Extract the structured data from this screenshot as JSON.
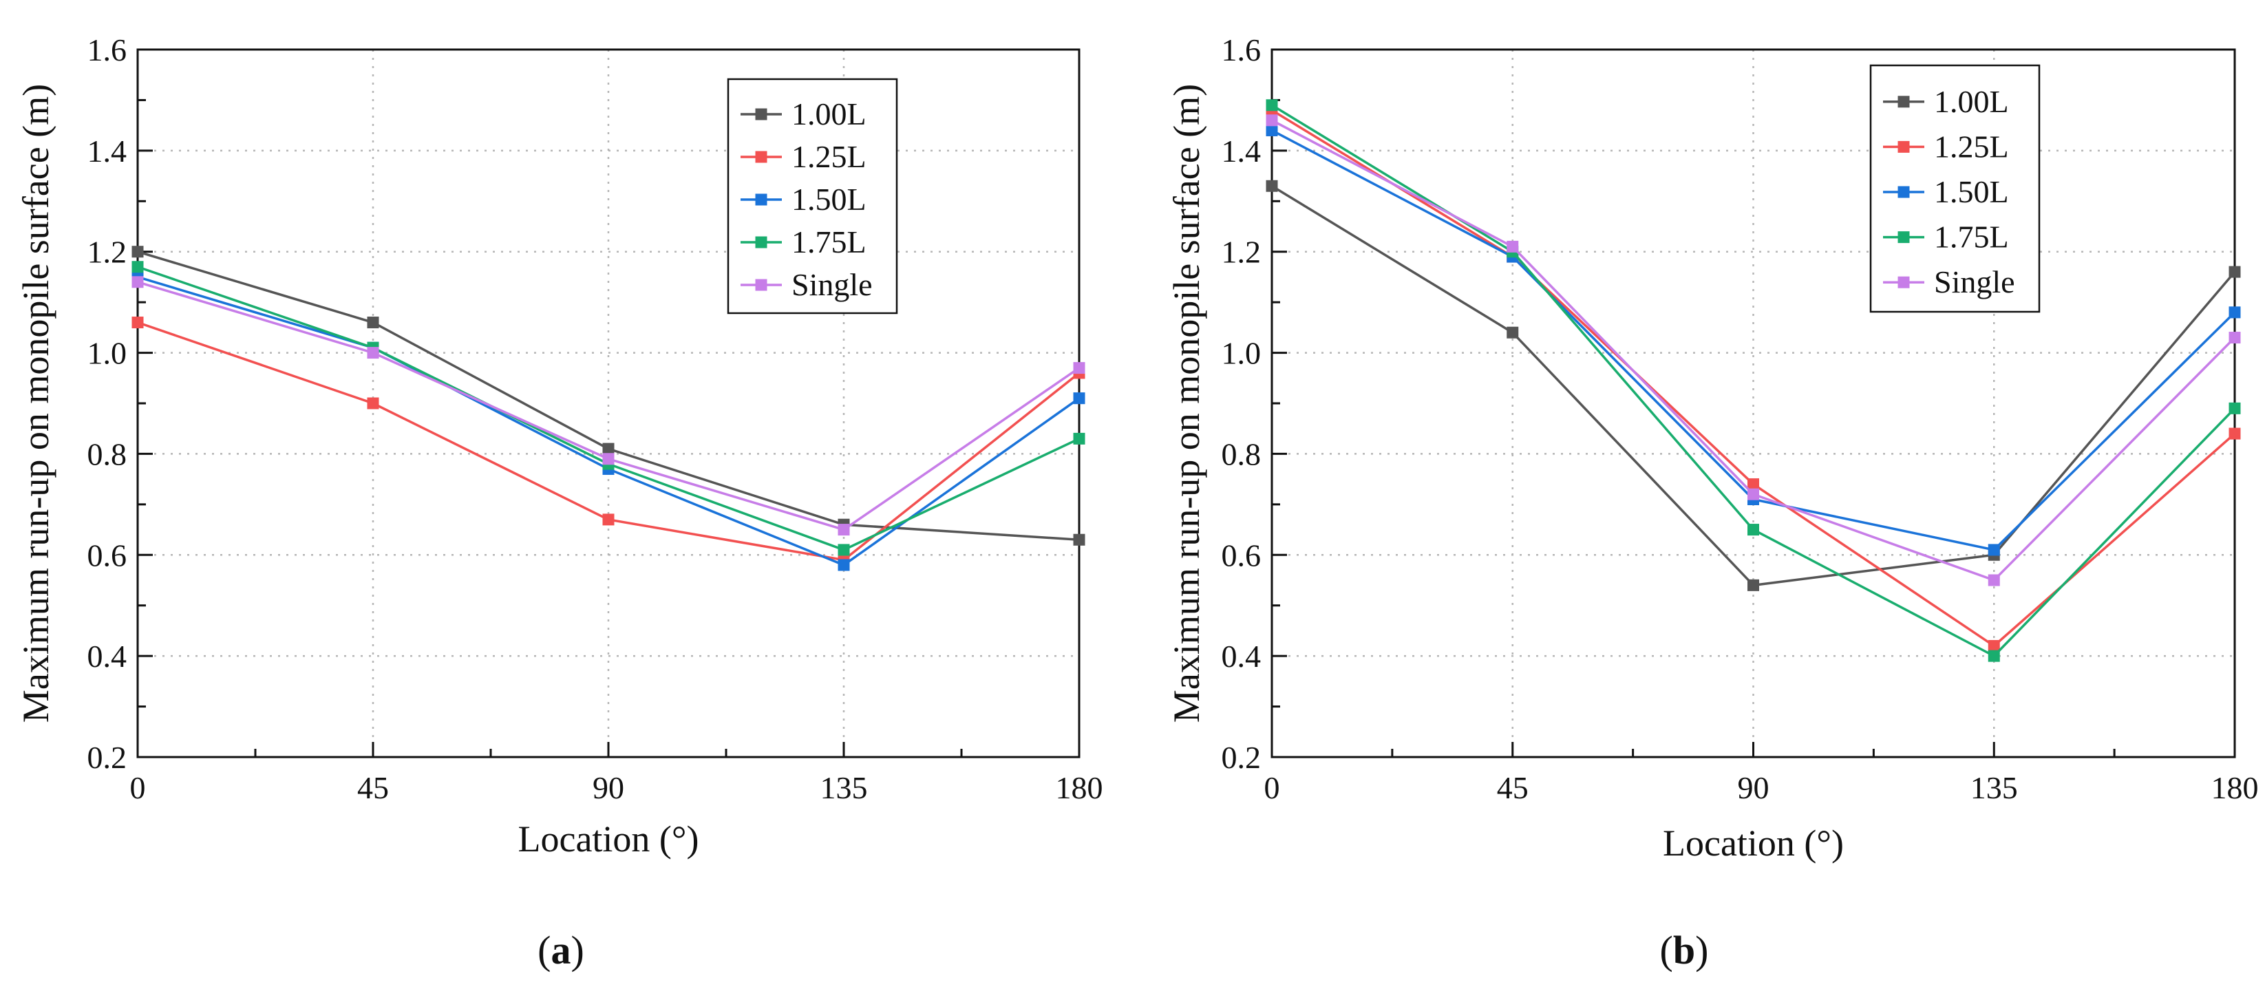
{
  "chart_data": [
    {
      "type": "line",
      "panel_label": "a",
      "xlabel": "Location (°)",
      "ylabel": "Maximum run-up on monopile surface (m)",
      "x": [
        0,
        45,
        90,
        135,
        180
      ],
      "xticks": [
        "0",
        "45",
        "90",
        "135",
        "180"
      ],
      "xlim": [
        0,
        180
      ],
      "ylim": [
        0.2,
        1.6
      ],
      "yticks": [
        "0.2",
        "0.4",
        "0.6",
        "0.8",
        "1.0",
        "1.2",
        "1.4",
        "1.6"
      ],
      "grid": true,
      "legend_position": "top-right",
      "series": [
        {
          "name": "1.00L",
          "color": "#555555",
          "values": [
            1.2,
            1.06,
            0.81,
            0.66,
            0.63
          ]
        },
        {
          "name": "1.25L",
          "color": "#f25050",
          "values": [
            1.06,
            0.9,
            0.67,
            0.59,
            0.96
          ]
        },
        {
          "name": "1.50L",
          "color": "#1a73d9",
          "values": [
            1.15,
            1.01,
            0.77,
            0.58,
            0.91
          ]
        },
        {
          "name": "1.75L",
          "color": "#19ad6e",
          "values": [
            1.17,
            1.01,
            0.78,
            0.61,
            0.83
          ]
        },
        {
          "name": "Single",
          "color": "#c77de8",
          "values": [
            1.14,
            1.0,
            0.79,
            0.65,
            0.97
          ]
        }
      ]
    },
    {
      "type": "line",
      "panel_label": "b",
      "xlabel": "Location (°)",
      "ylabel": "Maximum run-up on monopile surface (m)",
      "x": [
        0,
        45,
        90,
        135,
        180
      ],
      "xticks": [
        "0",
        "45",
        "90",
        "135",
        "180"
      ],
      "xlim": [
        0,
        180
      ],
      "ylim": [
        0.2,
        1.6
      ],
      "yticks": [
        "0.2",
        "0.4",
        "0.6",
        "0.8",
        "1.0",
        "1.2",
        "1.4",
        "1.6"
      ],
      "grid": true,
      "legend_position": "top-right",
      "series": [
        {
          "name": "1.00L",
          "color": "#555555",
          "values": [
            1.33,
            1.04,
            0.54,
            0.6,
            1.16
          ]
        },
        {
          "name": "1.25L",
          "color": "#f25050",
          "values": [
            1.48,
            1.19,
            0.74,
            0.42,
            0.84
          ]
        },
        {
          "name": "1.50L",
          "color": "#1a73d9",
          "values": [
            1.44,
            1.19,
            0.71,
            0.61,
            1.08
          ]
        },
        {
          "name": "1.75L",
          "color": "#19ad6e",
          "values": [
            1.49,
            1.2,
            0.65,
            0.4,
            0.89
          ]
        },
        {
          "name": "Single",
          "color": "#c77de8",
          "values": [
            1.46,
            1.21,
            0.72,
            0.55,
            1.03
          ]
        }
      ]
    }
  ]
}
